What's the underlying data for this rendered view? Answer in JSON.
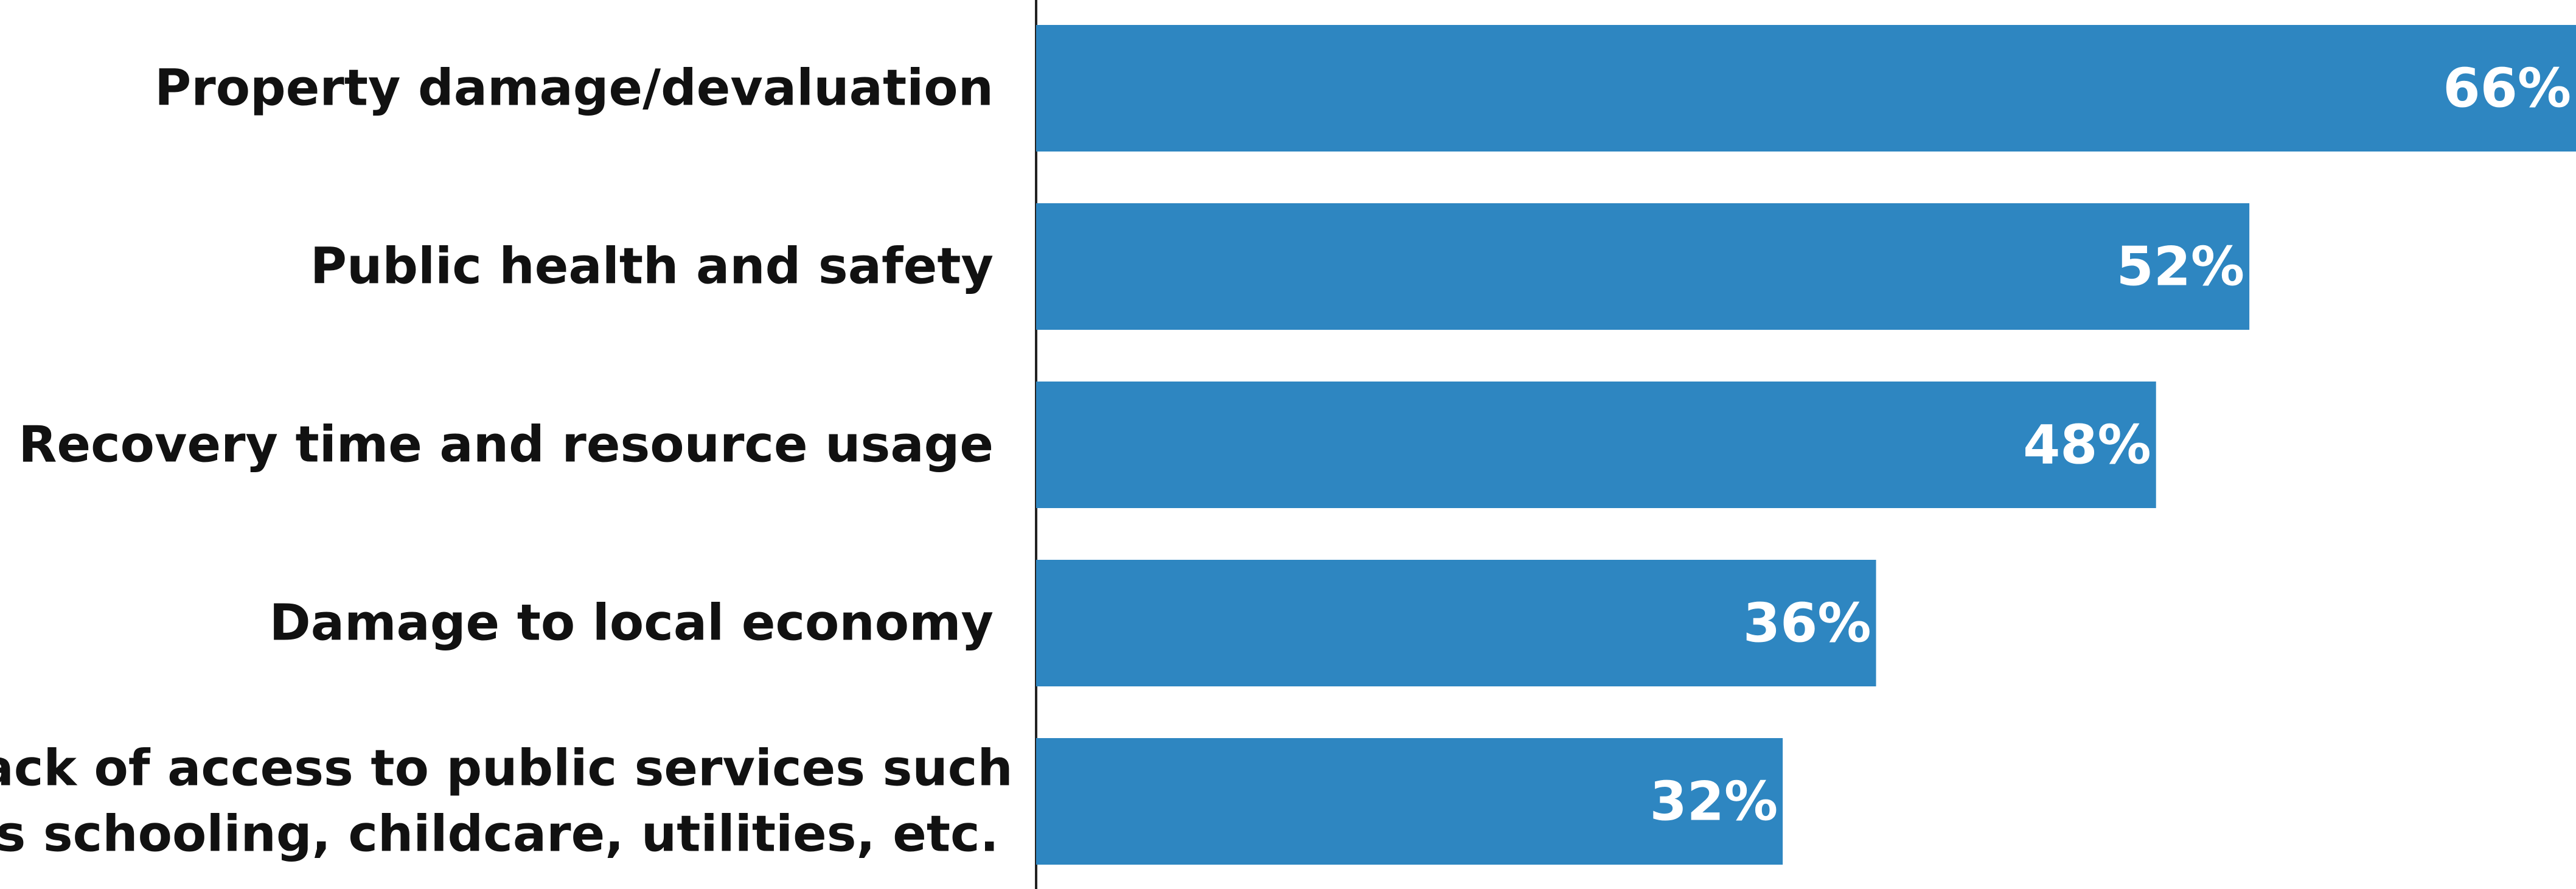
{
  "chart_data": {
    "type": "bar",
    "orientation": "horizontal",
    "categories": [
      [
        "Property damage/devaluation"
      ],
      [
        "Public health and safety"
      ],
      [
        "Recovery time and resource usage"
      ],
      [
        "Damage to local economy"
      ],
      [
        "Lack of access to public services such",
        "as schooling, childcare, utilities, etc."
      ]
    ],
    "values": [
      66,
      52,
      48,
      36,
      32
    ],
    "value_labels": [
      "66%",
      "52%",
      "48%",
      "36%",
      "32%"
    ],
    "xlim": [
      0,
      66
    ],
    "grid": false,
    "legend": "none",
    "bar_color": "#2E86C1",
    "label_color": "#111111",
    "value_label_color": "#FFFFFF"
  }
}
